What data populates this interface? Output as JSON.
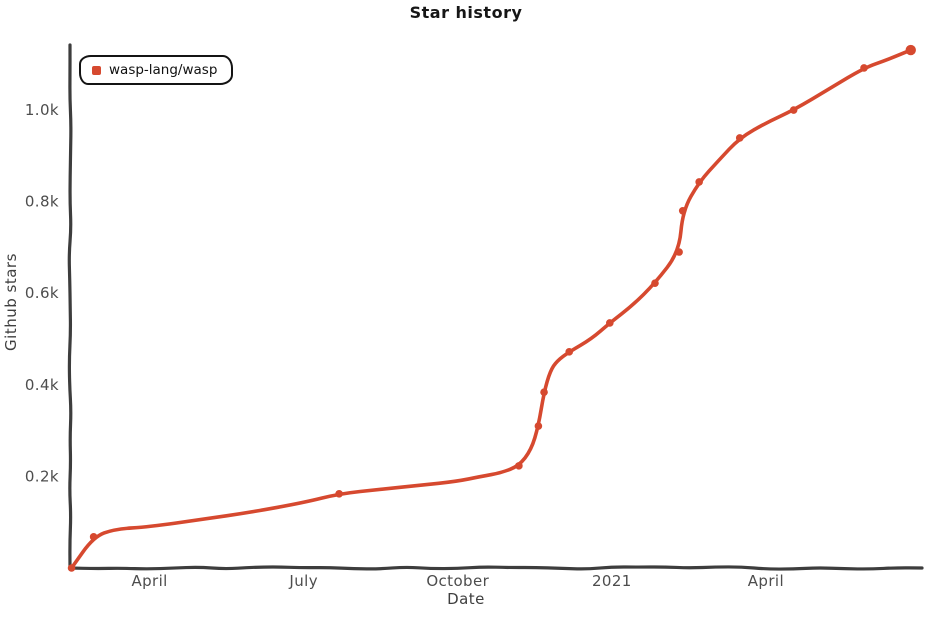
{
  "colors": {
    "background": "#ffffff",
    "axis": "#3d3d3d",
    "tick_text": "#4d4d4d",
    "title_text": "#161616",
    "accent": "#d6492f",
    "legend_border": "#141414"
  },
  "legend": {
    "marker_icon": "square-series-swatch",
    "position": "top-left"
  },
  "chart_data": {
    "type": "line",
    "title": "Star history",
    "xlabel": "Date",
    "ylabel": "Github stars",
    "style": "xkcd-hand-drawn",
    "grid": false,
    "legend_position": "top-left",
    "x_unit": "calendar months (0 = Jan 1 2020); axis spans mid-Feb 2020 to late Jun 2021",
    "xlim": [
      1.45,
      18.0
    ],
    "ylim": [
      0,
      1142
    ],
    "x_ticks": [
      {
        "value": 3,
        "label": "April"
      },
      {
        "value": 6,
        "label": "July"
      },
      {
        "value": 9,
        "label": "October"
      },
      {
        "value": 12,
        "label": "2021"
      },
      {
        "value": 15,
        "label": "April"
      }
    ],
    "y_ticks": [
      {
        "value": 200,
        "label": "0.2k"
      },
      {
        "value": 400,
        "label": "0.4k"
      },
      {
        "value": 600,
        "label": "0.6k"
      },
      {
        "value": 800,
        "label": "0.8k"
      },
      {
        "value": 1000,
        "label": "1.0k"
      }
    ],
    "series": [
      {
        "name": "wasp-lang/wasp",
        "color": "#d6492f",
        "x": [
          1.48,
          1.91,
          2.32,
          3.0,
          4.01,
          4.98,
          6.01,
          6.69,
          7.51,
          8.29,
          8.97,
          9.46,
          9.85,
          10.19,
          10.43,
          10.57,
          10.68,
          10.8,
          10.93,
          11.17,
          11.6,
          11.96,
          12.41,
          12.84,
          13.31,
          13.38,
          13.7,
          14.08,
          14.49,
          15.02,
          15.54,
          16.26,
          16.91,
          17.37,
          17.82
        ],
        "values": [
          0,
          68,
          85,
          90,
          106,
          122,
          143,
          162,
          172,
          181,
          189,
          200,
          208,
          223,
          258,
          310,
          384,
          430,
          452,
          472,
          500,
          535,
          574,
          622,
          690,
          780,
          843,
          890,
          939,
          973,
          1000,
          1048,
          1092,
          1110,
          1131
        ],
        "marker_indices": [
          0,
          1,
          7,
          13,
          15,
          16,
          19,
          21,
          23,
          24,
          25,
          26,
          28,
          30,
          32,
          34
        ]
      }
    ]
  }
}
